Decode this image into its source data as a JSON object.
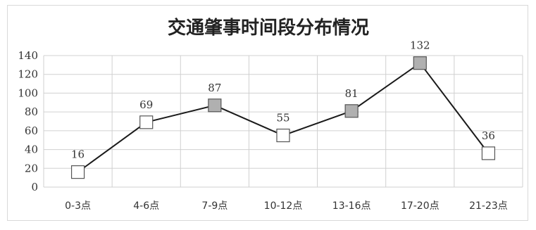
{
  "chart_data": {
    "type": "line",
    "title": "交通肇事时间段分布情况",
    "xlabel": "",
    "ylabel": "",
    "categories": [
      "0-3点",
      "4-6点",
      "7-9点",
      "10-12点",
      "13-16点",
      "17-20点",
      "21-23点"
    ],
    "series": [
      {
        "values": [
          16,
          69,
          87,
          55,
          81,
          132,
          36
        ]
      }
    ],
    "ylim": [
      0,
      140
    ],
    "yticks": [
      0,
      20,
      40,
      60,
      80,
      100,
      120,
      140
    ],
    "grid": {
      "horizontal": true,
      "vertical": true
    },
    "data_labels": true,
    "legend": "none",
    "colors": {
      "line": "#1a1a1a",
      "marker_highlight": "#b0b0b0",
      "marker_plain": "#ffffff",
      "marker_stroke": "#555555",
      "grid": "#d0d0d0"
    },
    "marker_style": [
      "plain",
      "plain",
      "highlight",
      "plain",
      "highlight",
      "highlight",
      "plain"
    ]
  }
}
